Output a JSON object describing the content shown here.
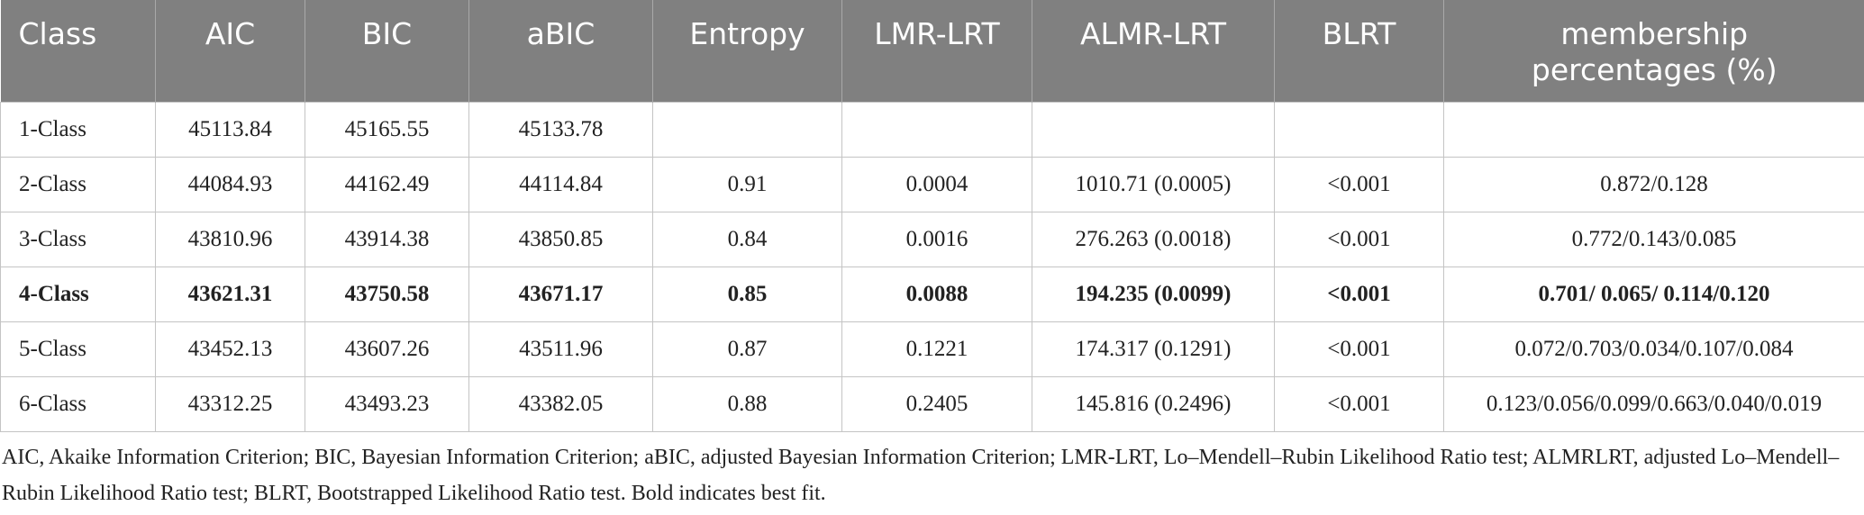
{
  "table": {
    "header": [
      "Class",
      "AIC",
      "BIC",
      "aBIC",
      "Entropy",
      "LMR-LRT",
      "ALMR-LRT",
      "BLRT",
      "membership percentages (%)"
    ],
    "rows": [
      [
        "1-Class",
        "45113.84",
        "45165.55",
        "45133.78",
        null,
        null,
        null,
        null,
        null
      ],
      [
        "2-Class",
        "44084.93",
        "44162.49",
        "44114.84",
        "0.91",
        "0.0004",
        "1010.71 (0.0005)",
        "<0.001",
        "0.872/0.128"
      ],
      [
        "3-Class",
        "43810.96",
        "43914.38",
        "43850.85",
        "0.84",
        "0.0016",
        "276.263 (0.0018)",
        "<0.001",
        "0.772/0.143/0.085"
      ],
      [
        "4-Class",
        "43621.31",
        "43750.58",
        "43671.17",
        "0.85",
        "0.0088",
        "194.235 (0.0099)",
        "<0.001",
        "0.701/ 0.065/ 0.114/0.120"
      ],
      [
        "5-Class",
        "43452.13",
        "43607.26",
        "43511.96",
        "0.87",
        "0.1221",
        "174.317 (0.1291)",
        "<0.001",
        "0.072/0.703/0.034/0.107/0.084"
      ],
      [
        "6-Class",
        "43312.25",
        "43493.23",
        "43382.05",
        "0.88",
        "0.2405",
        "145.816 (0.2496)",
        "<0.001",
        "0.123/0.056/0.099/0.663/0.040/0.019"
      ]
    ],
    "bold_row": 3
  },
  "footnote": "AIC, Akaike Information Criterion; BIC, Bayesian Information Criterion; aBIC, adjusted Bayesian Information Criterion; LMR-LRT, Lo–Mendell–Rubin Likelihood Ratio test; ALMRLRT, adjusted Lo–Mendell–Rubin Likelihood Ratio test; BLRT, Bootstrapped Likelihood Ratio test. Bold indicates best fit."
}
